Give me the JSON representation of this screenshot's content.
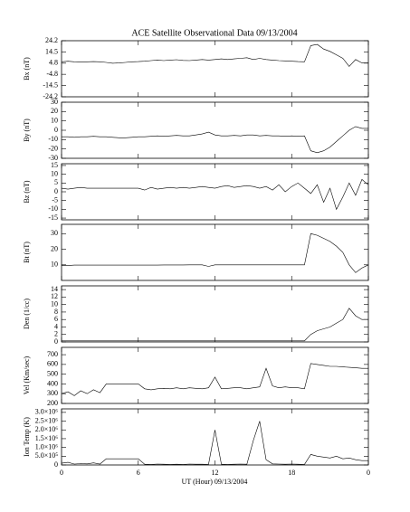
{
  "chart_data": [
    {
      "type": "line",
      "title": "ACE Satellite Observational Data   09/13/2004",
      "ylabel": "Bx (nT)",
      "color": "#000000",
      "ylim": [
        -24.2,
        24.2
      ],
      "yticks": [
        24.2,
        14.5,
        4.8,
        -4.8,
        -14.5,
        -24.2
      ],
      "x": [
        0,
        0.5,
        1,
        1.5,
        2,
        2.5,
        3,
        3.5,
        4,
        4.5,
        5,
        5.5,
        6,
        6.5,
        7,
        7.5,
        8,
        8.5,
        9,
        9.5,
        10,
        10.5,
        11,
        11.5,
        12,
        12.5,
        13,
        13.5,
        14,
        14.5,
        15,
        15.5,
        16,
        16.5,
        17,
        17.5,
        18,
        18.5,
        19,
        19.5,
        20,
        20.5,
        21,
        21.5,
        22,
        22.5,
        23,
        23.5,
        24
      ],
      "values": [
        6,
        6.5,
        6,
        5.8,
        6,
        6.2,
        6,
        5.5,
        4.8,
        5,
        5.5,
        6,
        6.2,
        6.5,
        7,
        7.5,
        7,
        7.5,
        7.8,
        7.2,
        7,
        7.5,
        8,
        7.5,
        8,
        8.5,
        8,
        8.5,
        9,
        9.5,
        8,
        9,
        8,
        7.5,
        7,
        6.8,
        6.5,
        6.2,
        6,
        20,
        21,
        17,
        15,
        12,
        9,
        2,
        8,
        5,
        5
      ]
    },
    {
      "type": "line",
      "ylabel": "By (nT)",
      "color": "#000000",
      "ylim": [
        -30,
        30
      ],
      "yticks": [
        30,
        20,
        10,
        0,
        -10,
        -20,
        -30
      ],
      "x": [
        0,
        0.5,
        1,
        1.5,
        2,
        2.5,
        3,
        3.5,
        4,
        4.5,
        5,
        5.5,
        6,
        6.5,
        7,
        7.5,
        8,
        8.5,
        9,
        9.5,
        10,
        10.5,
        11,
        11.5,
        12,
        12.5,
        13,
        13.5,
        14,
        14.5,
        15,
        15.5,
        16,
        16.5,
        17,
        17.5,
        18,
        18.5,
        19,
        19.5,
        20,
        20.5,
        21,
        21.5,
        22,
        22.5,
        23,
        23.5,
        24
      ],
      "values": [
        -7,
        -7,
        -7.5,
        -7,
        -7,
        -6.5,
        -7,
        -7,
        -7.5,
        -8,
        -8,
        -7.5,
        -7,
        -7,
        -6.5,
        -6,
        -6.5,
        -6,
        -5.5,
        -6,
        -6,
        -5,
        -4,
        -2,
        -5,
        -6,
        -6,
        -5.5,
        -6,
        -5,
        -5,
        -6,
        -5.5,
        -6,
        -6,
        -6.5,
        -6,
        -6.5,
        -6,
        -22,
        -24,
        -22,
        -18,
        -12,
        -6,
        0,
        4,
        2,
        2
      ]
    },
    {
      "type": "line",
      "ylabel": "Bz (nT)",
      "color": "#000000",
      "ylim": [
        -16,
        16
      ],
      "yticks": [
        15,
        10,
        5,
        0,
        -5,
        -10,
        -15
      ],
      "x": [
        0,
        0.5,
        1,
        1.5,
        2,
        2.5,
        3,
        3.5,
        4,
        4.5,
        5,
        5.5,
        6,
        6.5,
        7,
        7.5,
        8,
        8.5,
        9,
        9.5,
        10,
        10.5,
        11,
        11.5,
        12,
        12.5,
        13,
        13.5,
        14,
        14.5,
        15,
        15.5,
        16,
        16.5,
        17,
        17.5,
        18,
        18.5,
        19,
        19.5,
        20,
        20.5,
        21,
        21.5,
        22,
        22.5,
        23,
        23.5,
        24
      ],
      "values": [
        2,
        1.5,
        2,
        2.5,
        2,
        2,
        2,
        2,
        2,
        2,
        2,
        2,
        2,
        1,
        2.5,
        1.5,
        2,
        2.5,
        2,
        2.5,
        2,
        2.5,
        3,
        2.5,
        2,
        3,
        3.5,
        2.5,
        3,
        3.5,
        3,
        2,
        3,
        1,
        4,
        0,
        3,
        5,
        2,
        -1,
        4,
        -6,
        2,
        -10,
        -3,
        5,
        -2,
        7,
        4
      ]
    },
    {
      "type": "line",
      "ylabel": "Bt (nT)",
      "color": "#000000",
      "ylim": [
        0,
        36
      ],
      "yticks": [
        10,
        20,
        30
      ],
      "x": [
        0,
        0.5,
        1,
        1.5,
        2,
        2.5,
        3,
        3.5,
        4,
        4.5,
        5,
        5.5,
        6,
        6.5,
        7,
        7.5,
        8,
        8.5,
        9,
        9.5,
        10,
        10.5,
        11,
        11.5,
        12,
        12.5,
        13,
        13.5,
        14,
        14.5,
        15,
        15.5,
        16,
        16.5,
        17,
        17.5,
        18,
        18.5,
        19,
        19.5,
        20,
        20.5,
        21,
        21.5,
        22,
        22.5,
        23,
        23.5,
        24
      ],
      "values": [
        9.5,
        9.5,
        9.8,
        9.8,
        9.8,
        9.8,
        9.8,
        9.8,
        9.8,
        9.8,
        9.8,
        9.8,
        9.8,
        9.8,
        9.8,
        9.8,
        9.9,
        9.9,
        9.9,
        9.9,
        10,
        10,
        10,
        9,
        10,
        10,
        10,
        10,
        10,
        10,
        10,
        10,
        10,
        10,
        10,
        10,
        10,
        10,
        10,
        30,
        29,
        27,
        25,
        22,
        18,
        10,
        5,
        8,
        10
      ]
    },
    {
      "type": "line",
      "ylabel": "Den (1/cc)",
      "color": "#000000",
      "ylim": [
        0,
        15
      ],
      "yticks": [
        0,
        2,
        4,
        6,
        8,
        10,
        12,
        14
      ],
      "x": [
        0,
        0.5,
        1,
        1.5,
        2,
        2.5,
        3,
        3.5,
        4,
        4.5,
        5,
        5.5,
        6,
        6.5,
        7,
        7.5,
        8,
        8.5,
        9,
        9.5,
        10,
        10.5,
        11,
        11.5,
        12,
        12.5,
        13,
        13.5,
        14,
        14.5,
        15,
        15.5,
        16,
        16.5,
        17,
        17.5,
        18,
        18.5,
        19,
        19.5,
        20,
        20.5,
        21,
        21.5,
        22,
        22.5,
        23,
        23.5,
        24
      ],
      "values": [
        0.3,
        0.3,
        0.3,
        0.3,
        0.3,
        0.3,
        0.3,
        0.3,
        0.3,
        0.3,
        0.3,
        0.3,
        0.3,
        0.3,
        0.3,
        0.3,
        0.3,
        0.3,
        0.3,
        0.3,
        0.3,
        0.3,
        0.3,
        0.3,
        0.3,
        0.3,
        0.3,
        0.3,
        0.3,
        0.3,
        0.3,
        0.3,
        0.3,
        0.3,
        0.3,
        0.3,
        0.3,
        0.3,
        0.3,
        2,
        3,
        3.5,
        4,
        5,
        6,
        9,
        7,
        6,
        6
      ]
    },
    {
      "type": "line",
      "ylabel": "Vel (Km/sec)",
      "color": "#000000",
      "ylim": [
        200,
        775
      ],
      "yticks": [
        200,
        300,
        400,
        500,
        600,
        700
      ],
      "x": [
        0,
        0.5,
        1,
        1.5,
        2,
        2.5,
        3,
        3.5,
        4,
        4.5,
        5,
        5.5,
        6,
        6.5,
        7,
        7.5,
        8,
        8.5,
        9,
        9.5,
        10,
        10.5,
        11,
        11.5,
        12,
        12.5,
        13,
        13.5,
        14,
        14.5,
        15,
        15.5,
        16,
        16.5,
        17,
        17.5,
        18,
        18.5,
        19,
        19.5,
        20,
        20.5,
        21,
        21.5,
        22,
        22.5,
        23,
        23.5,
        24
      ],
      "values": [
        300,
        320,
        280,
        330,
        300,
        340,
        310,
        400,
        400,
        400,
        400,
        400,
        400,
        350,
        340,
        350,
        355,
        350,
        360,
        350,
        360,
        355,
        350,
        360,
        470,
        350,
        355,
        360,
        360,
        350,
        360,
        370,
        560,
        380,
        360,
        370,
        360,
        360,
        350,
        610,
        600,
        590,
        580,
        580,
        575,
        570,
        565,
        560,
        560
      ]
    },
    {
      "type": "line",
      "ylabel": "Ion Temp (K)",
      "xlabel": "UT (Hour)  09/13/2004",
      "color": "#000000",
      "ylim": [
        0,
        3200000
      ],
      "yticks": [
        0,
        {
          "value": 500000,
          "label": "5.0×10⁵"
        },
        {
          "value": 1000000,
          "label": "1.0×10⁶"
        },
        {
          "value": 1500000,
          "label": "1.5×10⁶"
        },
        {
          "value": 2000000,
          "label": "2.0×10⁶"
        },
        {
          "value": 2500000,
          "label": "2.5×10⁶"
        },
        {
          "value": 3000000,
          "label": "3.0×10⁶"
        }
      ],
      "xlim": [
        0,
        24
      ],
      "xticks": [
        0,
        6,
        12,
        18,
        {
          "value": 24,
          "label": "0"
        }
      ],
      "x": [
        0,
        0.5,
        1,
        1.5,
        2,
        2.5,
        3,
        3.5,
        4,
        4.5,
        5,
        5.5,
        6,
        6.5,
        7,
        7.5,
        8,
        8.5,
        9,
        9.5,
        10,
        10.5,
        11,
        11.5,
        12,
        12.5,
        13,
        13.5,
        14,
        14.5,
        15,
        15.5,
        16,
        16.5,
        17,
        17.5,
        18,
        18.5,
        19,
        19.5,
        20,
        20.5,
        21,
        21.5,
        22,
        22.5,
        23,
        23.5,
        24
      ],
      "values": [
        100000,
        150000,
        50000,
        80000,
        60000,
        120000,
        50000,
        350000,
        350000,
        350000,
        350000,
        350000,
        350000,
        40000,
        30000,
        50000,
        40000,
        30000,
        40000,
        30000,
        50000,
        40000,
        40000,
        30000,
        2000000,
        40000,
        30000,
        40000,
        50000,
        40000,
        1400000,
        2500000,
        300000,
        60000,
        50000,
        40000,
        50000,
        40000,
        30000,
        600000,
        500000,
        450000,
        400000,
        500000,
        350000,
        400000,
        300000,
        250000,
        250000
      ]
    }
  ]
}
